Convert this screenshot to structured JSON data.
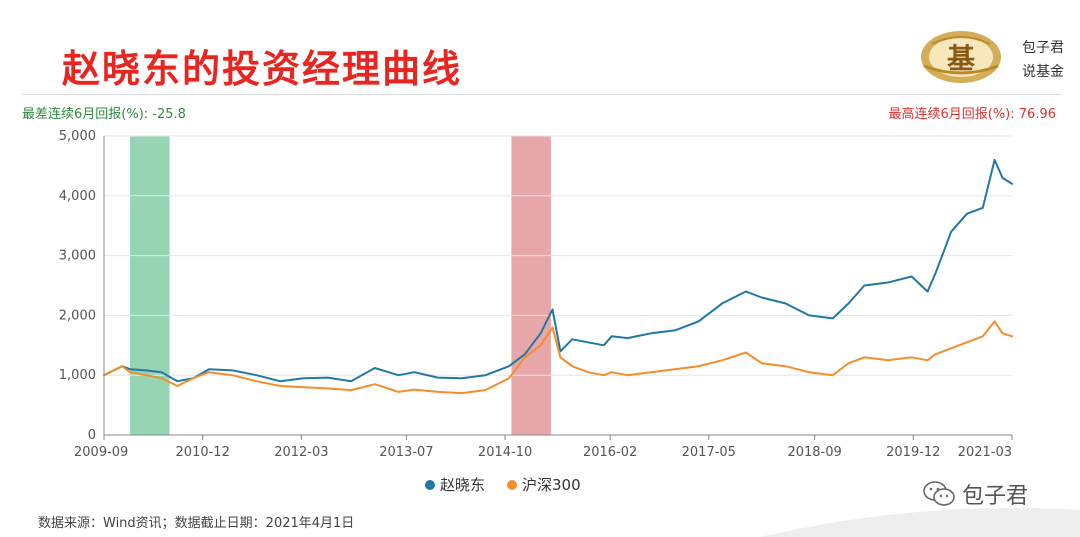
{
  "header": {
    "title": "赵晓东的投资经理曲线",
    "brand_line1": "包子君",
    "brand_line2": "说基金",
    "logo_icon": "fund-logo-icon",
    "logo_glyph": "基"
  },
  "stats": {
    "worst_label": "最差连续6月回报(%):",
    "worst_value": "-25.8",
    "best_label": "最高连续6月回报(%):",
    "best_value": "76.96"
  },
  "chart_data": {
    "type": "line",
    "title": "",
    "xlabel": "",
    "ylabel": "",
    "ylim": [
      0,
      5000
    ],
    "yticks": [
      0,
      1000,
      2000,
      3000,
      4000,
      5000
    ],
    "ytick_labels": [
      "0",
      "1,000",
      "2,000",
      "3,000",
      "4,000",
      "5,000"
    ],
    "xlim": [
      2009.67,
      2021.17
    ],
    "xtick_labels": [
      "2009-09",
      "2010-12",
      "2012-03",
      "2013-07",
      "2014-10",
      "2016-02",
      "2017-05",
      "2018-09",
      "2019-12",
      "2021-03"
    ],
    "xtick_positions": [
      2009.67,
      2010.92,
      2012.17,
      2013.5,
      2014.75,
      2016.08,
      2017.33,
      2018.67,
      2019.92,
      2021.17
    ],
    "grid": "horizontal",
    "legend_position": "bottom-center",
    "highlight_bands": [
      {
        "type": "worst",
        "from": 2010.0,
        "to": 2010.5,
        "color": "#8fd3b0"
      },
      {
        "type": "best",
        "from": 2014.83,
        "to": 2015.33,
        "color": "#e6a1a3"
      }
    ],
    "series": [
      {
        "name": "赵晓东",
        "color": "#2178a6",
        "x": [
          2009.67,
          2009.9,
          2010.0,
          2010.2,
          2010.4,
          2010.6,
          2010.8,
          2011.0,
          2011.3,
          2011.6,
          2011.9,
          2012.2,
          2012.5,
          2012.8,
          2013.1,
          2013.4,
          2013.6,
          2013.9,
          2014.2,
          2014.5,
          2014.8,
          2015.0,
          2015.2,
          2015.35,
          2015.45,
          2015.6,
          2015.8,
          2016.0,
          2016.1,
          2016.3,
          2016.6,
          2016.9,
          2017.2,
          2017.5,
          2017.8,
          2018.0,
          2018.3,
          2018.6,
          2018.9,
          2019.1,
          2019.3,
          2019.6,
          2019.9,
          2020.1,
          2020.2,
          2020.4,
          2020.6,
          2020.8,
          2020.95,
          2021.05,
          2021.17
        ],
        "values": [
          1000,
          1150,
          1100,
          1080,
          1050,
          900,
          950,
          1100,
          1080,
          1000,
          900,
          950,
          960,
          900,
          1120,
          1000,
          1050,
          960,
          950,
          1000,
          1150,
          1350,
          1700,
          2100,
          1400,
          1600,
          1550,
          1500,
          1650,
          1620,
          1700,
          1750,
          1900,
          2200,
          2400,
          2300,
          2200,
          2000,
          1950,
          2200,
          2500,
          2550,
          2650,
          2400,
          2700,
          3400,
          3700,
          3800,
          4600,
          4300,
          4200
        ]
      },
      {
        "name": "沪深300",
        "color": "#f28e2b",
        "x": [
          2009.67,
          2009.9,
          2010.0,
          2010.2,
          2010.4,
          2010.6,
          2010.8,
          2011.0,
          2011.3,
          2011.6,
          2011.9,
          2012.2,
          2012.5,
          2012.8,
          2013.1,
          2013.4,
          2013.6,
          2013.9,
          2014.2,
          2014.5,
          2014.8,
          2015.0,
          2015.2,
          2015.35,
          2015.45,
          2015.6,
          2015.8,
          2016.0,
          2016.1,
          2016.3,
          2016.6,
          2016.9,
          2017.2,
          2017.5,
          2017.8,
          2018.0,
          2018.3,
          2018.6,
          2018.9,
          2019.1,
          2019.3,
          2019.6,
          2019.9,
          2020.1,
          2020.2,
          2020.4,
          2020.6,
          2020.8,
          2020.95,
          2021.05,
          2021.17
        ],
        "values": [
          1000,
          1150,
          1050,
          1000,
          950,
          820,
          950,
          1050,
          1000,
          900,
          820,
          800,
          780,
          750,
          850,
          720,
          760,
          720,
          700,
          750,
          950,
          1300,
          1500,
          1800,
          1300,
          1150,
          1050,
          1000,
          1050,
          1000,
          1050,
          1100,
          1150,
          1250,
          1380,
          1200,
          1150,
          1050,
          1000,
          1200,
          1300,
          1250,
          1300,
          1250,
          1350,
          1450,
          1550,
          1650,
          1900,
          1700,
          1650
        ]
      }
    ]
  },
  "footer": {
    "source": "数据来源：Wind资讯；数据截止日期：2021年4月1日",
    "watermark_icon": "wechat-icon",
    "watermark": "包子君"
  }
}
